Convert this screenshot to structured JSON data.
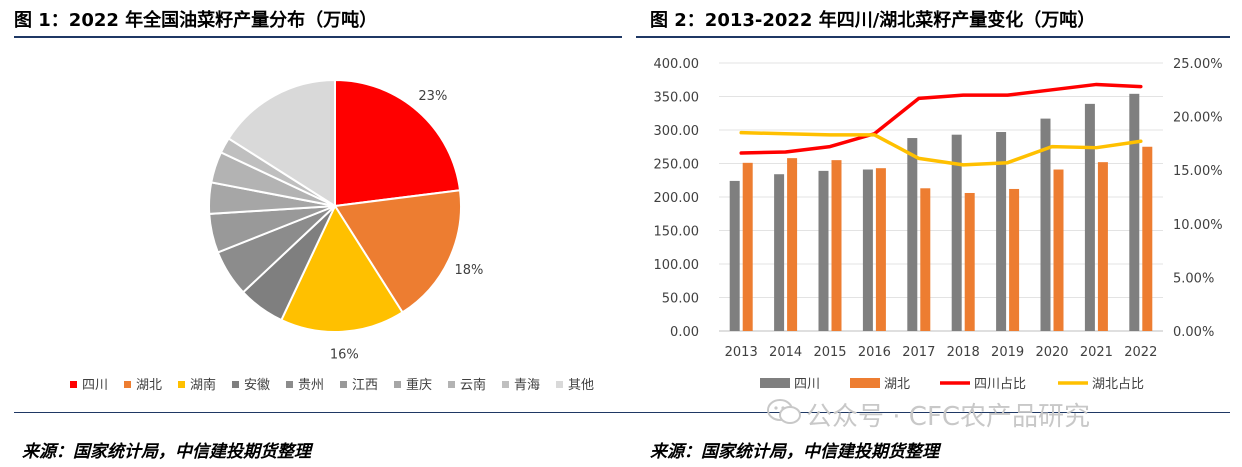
{
  "left": {
    "title": "图 1：2022 年全国油菜籽产量分布（万吨）",
    "source": "来源：国家统计局，中信建投期货整理"
  },
  "right": {
    "title": "图 2：2013-2022 年四川/湖北菜籽产量变化（万吨）",
    "source": "来源：国家统计局，中信建投期货整理"
  },
  "watermark": "公众号 · CFC农产品研究",
  "chart_data": [
    {
      "type": "pie",
      "labels": [
        "四川",
        "湖北",
        "湖南",
        "安徽",
        "贵州",
        "江西",
        "重庆",
        "云南",
        "青海",
        "其他"
      ],
      "values": [
        23,
        18,
        16,
        6,
        6,
        5,
        4,
        4,
        2,
        16
      ],
      "data_labels": [
        "23%",
        "18%",
        "16%",
        "",
        "",
        "",
        "",
        "",
        "",
        ""
      ],
      "colors": [
        "#ff0000",
        "#ed7d31",
        "#ffc000",
        "#7f7f7f",
        "#8c8c8c",
        "#999999",
        "#a6a6a6",
        "#b3b3b3",
        "#bfbfbf",
        "#d9d9d9"
      ],
      "legend_position": "bottom"
    },
    {
      "type": "bar",
      "categories": [
        "2013",
        "2014",
        "2015",
        "2016",
        "2017",
        "2018",
        "2019",
        "2020",
        "2021",
        "2022"
      ],
      "series": [
        {
          "name": "四川",
          "kind": "bar",
          "axis": "left",
          "color": "#7f7f7f",
          "values": [
            224,
            234,
            239,
            241,
            288,
            293,
            297,
            317,
            339,
            354
          ]
        },
        {
          "name": "湖北",
          "kind": "bar",
          "axis": "left",
          "color": "#ed7d31",
          "values": [
            251,
            258,
            255,
            243,
            213,
            206,
            212,
            241,
            252,
            275
          ]
        },
        {
          "name": "四川占比",
          "kind": "line",
          "axis": "right",
          "color": "#ff0000",
          "values": [
            0.166,
            0.167,
            0.172,
            0.184,
            0.217,
            0.22,
            0.22,
            0.225,
            0.23,
            0.228
          ]
        },
        {
          "name": "湖北占比",
          "kind": "line",
          "axis": "right",
          "color": "#ffc000",
          "values": [
            0.185,
            0.184,
            0.183,
            0.183,
            0.161,
            0.155,
            0.157,
            0.172,
            0.171,
            0.177
          ]
        }
      ],
      "y_left": {
        "min": 0,
        "max": 400,
        "step": 50,
        "ticks": [
          "0.00",
          "50.00",
          "100.00",
          "150.00",
          "200.00",
          "250.00",
          "300.00",
          "350.00",
          "400.00"
        ]
      },
      "y_right": {
        "min": 0,
        "max": 0.25,
        "step": 0.05,
        "ticks": [
          "0.00%",
          "5.00%",
          "10.00%",
          "15.00%",
          "20.00%",
          "25.00%"
        ]
      },
      "grid": true,
      "legend_position": "bottom"
    }
  ]
}
